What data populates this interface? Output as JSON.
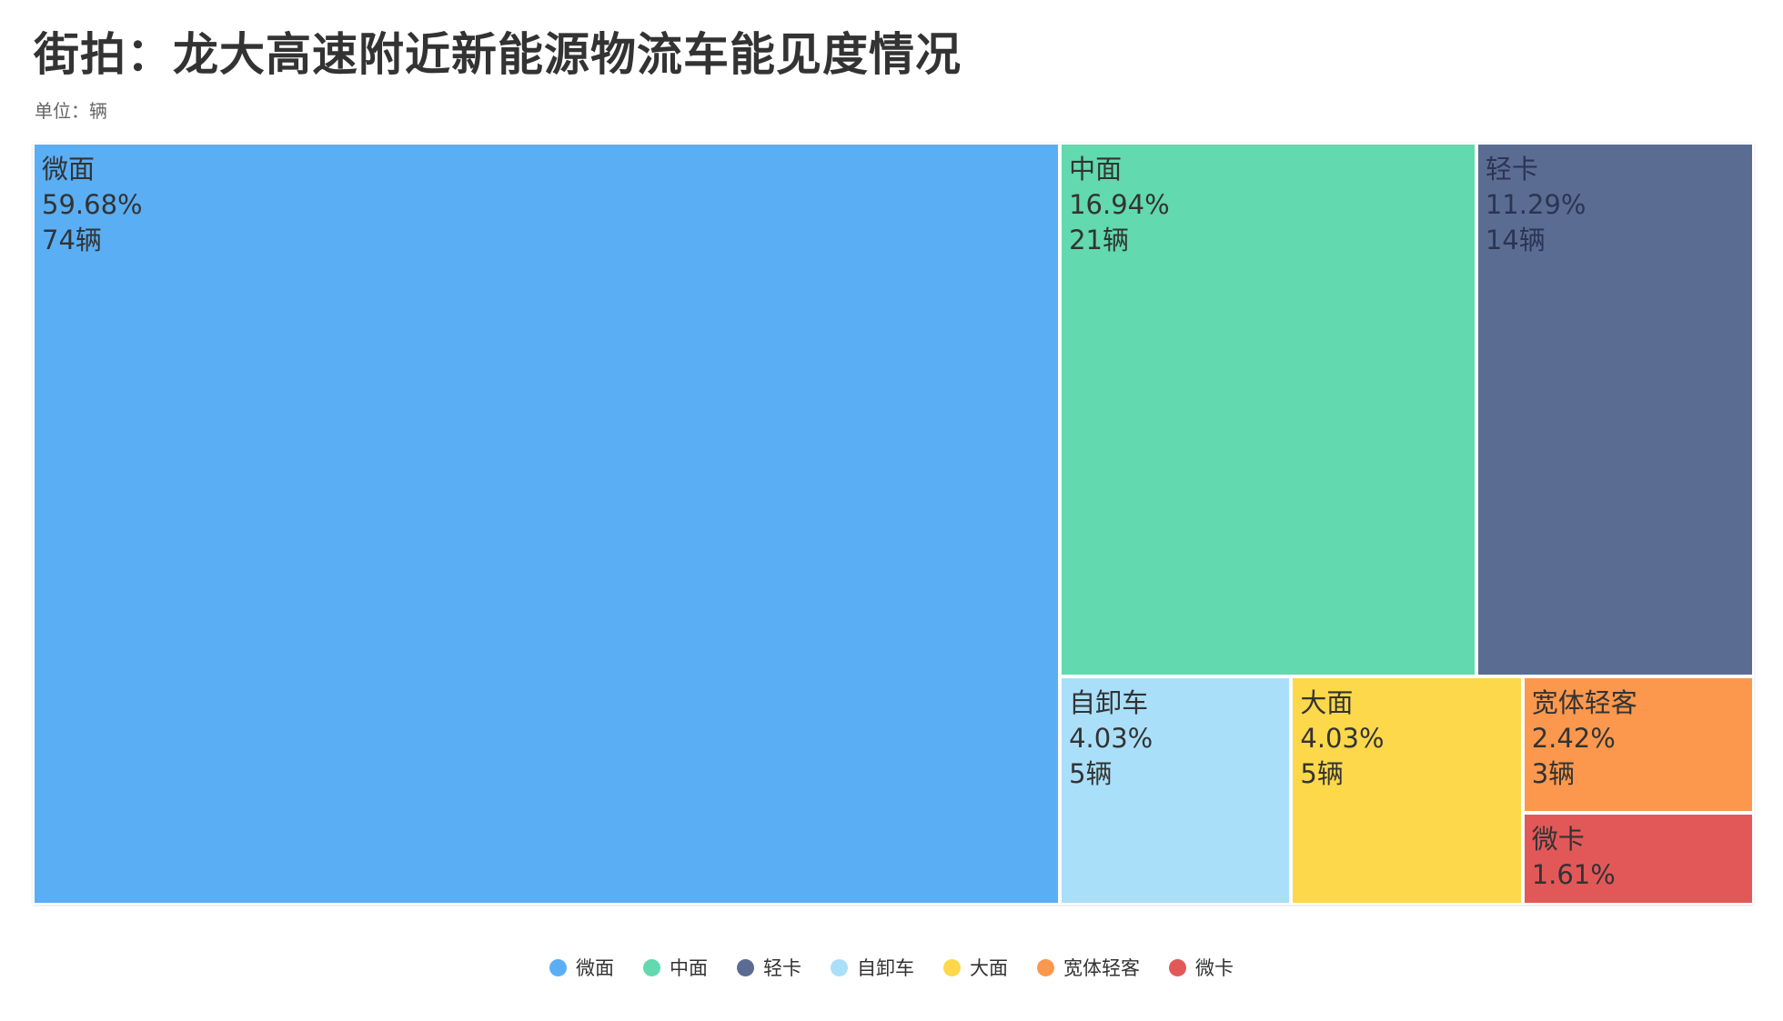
{
  "title": "街拍：龙大高速附近新能源物流车能见度情况",
  "subtitle": "单位：辆",
  "chart_data": {
    "type": "treemap",
    "title": "街拍：龙大高速附近新能源物流车能见度情况",
    "subtitle": "单位：辆",
    "unit": "辆",
    "items": [
      {
        "name": "微面",
        "value": 74,
        "percent": "59.68%",
        "count_label": "74辆",
        "color": "#5aaef4"
      },
      {
        "name": "中面",
        "value": 21,
        "percent": "16.94%",
        "count_label": "21辆",
        "color": "#62d9ae"
      },
      {
        "name": "轻卡",
        "value": 14,
        "percent": "11.29%",
        "count_label": "14辆",
        "color": "#5b6c93"
      },
      {
        "name": "自卸车",
        "value": 5,
        "percent": "4.03%",
        "count_label": "5辆",
        "color": "#aadff9"
      },
      {
        "name": "大面",
        "value": 5,
        "percent": "4.03%",
        "count_label": "5辆",
        "color": "#fcd84a"
      },
      {
        "name": "宽体轻客",
        "value": 3,
        "percent": "2.42%",
        "count_label": "3辆",
        "color": "#fb984d"
      },
      {
        "name": "微卡",
        "value": 2,
        "percent": "1.61%",
        "count_label": "",
        "color": "#e25858"
      }
    ],
    "legend_position": "bottom"
  }
}
